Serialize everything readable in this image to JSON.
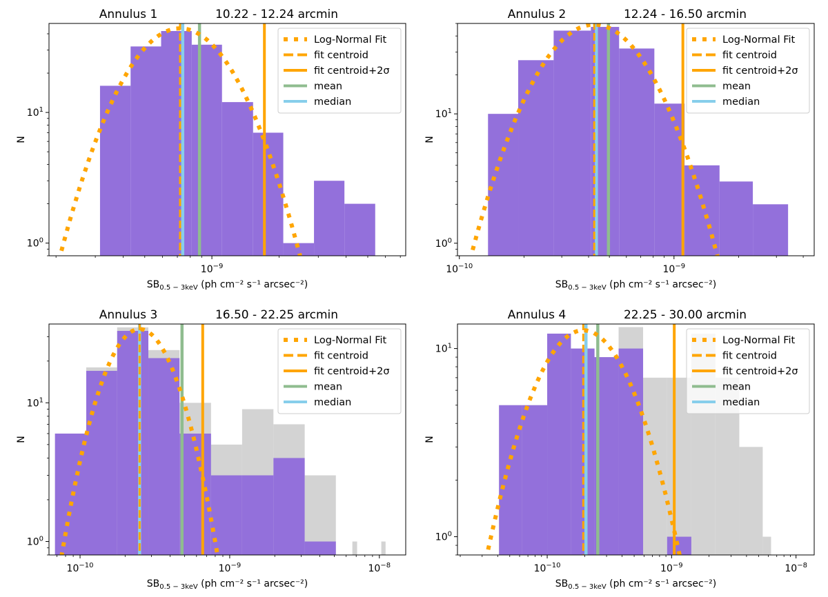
{
  "chart_data": [
    {
      "type": "bar",
      "title_left": "Annulus 1",
      "title_right": "10.22 - 12.24 arcmin",
      "xlabel_main": "SB",
      "xlabel_sub": "0.5 − 3keV",
      "xlabel_rest": " (ph cm⁻² s⁻¹ arcsec⁻²)",
      "ylabel": "N",
      "xscale": "log",
      "yscale": "log",
      "xlim": [
        1.86e-10,
        7.4e-09
      ],
      "ylim": [
        0.8,
        48
      ],
      "xticks": [
        {
          "value": 1e-09,
          "label": "10",
          "exp": "−9"
        }
      ],
      "yticks": [
        {
          "value": 1,
          "label": "10",
          "exp": "0"
        },
        {
          "value": 10,
          "label": "10",
          "exp": "1"
        }
      ],
      "hist_full": null,
      "hist": {
        "edges": [
          3.15e-10,
          4.32e-10,
          5.92e-10,
          8.12e-10,
          1.11e-09,
          1.53e-09,
          2.09e-09,
          2.87e-09,
          3.93e-09,
          5.4e-09
        ],
        "counts": [
          16,
          32,
          42,
          33,
          12,
          7,
          1,
          3,
          2
        ]
      },
      "fit": {
        "centroid": 7.2e-10,
        "sigma_dex": 0.19,
        "peak": 44
      },
      "lines": {
        "fit_centroid": 7.2e-10,
        "fit_centroid_2sigma": 1.72e-09,
        "mean": 8.8e-10,
        "median": 7.4e-10
      },
      "legend": [
        "Log-Normal Fit",
        "fit centroid",
        "fit centroid+2σ",
        "mean",
        "median"
      ],
      "legend_position": "top-right"
    },
    {
      "type": "bar",
      "title_left": "Annulus 2",
      "title_right": "12.24 - 16.50 arcmin",
      "xlabel_main": "SB",
      "xlabel_sub": "0.5 − 3keV",
      "xlabel_rest": " (ph cm⁻² s⁻¹ arcsec⁻²)",
      "ylabel": "N",
      "xscale": "log",
      "yscale": "log",
      "xlim": [
        9.8e-11,
        4.5e-09
      ],
      "ylim": [
        0.8,
        50
      ],
      "xticks": [
        {
          "value": 1e-10,
          "label": "10",
          "exp": "−10"
        },
        {
          "value": 1e-09,
          "label": "10",
          "exp": "−9"
        }
      ],
      "yticks": [
        {
          "value": 1,
          "label": "10",
          "exp": "0"
        },
        {
          "value": 10,
          "label": "10",
          "exp": "1"
        }
      ],
      "hist_full": null,
      "hist": {
        "edges": [
          1.36e-10,
          1.88e-10,
          2.75e-10,
          4.1e-10,
          5.55e-10,
          8.1e-10,
          1.12e-09,
          1.63e-09,
          2.33e-09,
          3.4e-09
        ],
        "counts": [
          10,
          26,
          44,
          47,
          32,
          12,
          4,
          3,
          2
        ]
      },
      "fit": {
        "centroid": 4.25e-10,
        "sigma_dex": 0.2,
        "peak": 49
      },
      "lines": {
        "fit_centroid": 4.25e-10,
        "fit_centroid_2sigma": 1.1e-09,
        "mean": 4.95e-10,
        "median": 4.35e-10
      },
      "legend": [
        "Log-Normal Fit",
        "fit centroid",
        "fit centroid+2σ",
        "mean",
        "median"
      ],
      "legend_position": "top-right"
    },
    {
      "type": "bar",
      "title_left": "Annulus 3",
      "title_right": "16.50 - 22.25 arcmin",
      "xlabel_main": "SB",
      "xlabel_sub": "0.5 − 3keV",
      "xlabel_rest": " (ph cm⁻² s⁻¹ arcsec⁻²)",
      "ylabel": "N",
      "xscale": "log",
      "yscale": "log",
      "xlim": [
        6.2e-11,
        1.5e-08
      ],
      "ylim": [
        0.8,
        37
      ],
      "xticks": [
        {
          "value": 1e-10,
          "label": "10",
          "exp": "−10"
        },
        {
          "value": 1e-09,
          "label": "10",
          "exp": "−9"
        },
        {
          "value": 1e-08,
          "label": "10",
          "exp": "−8"
        }
      ],
      "yticks": [
        {
          "value": 1,
          "label": "10",
          "exp": "0"
        },
        {
          "value": 10,
          "label": "10",
          "exp": "1"
        }
      ],
      "hist_full": {
        "edges": [
          6.8e-11,
          1.1e-10,
          1.77e-10,
          2.86e-10,
          4.62e-10,
          7.5e-10,
          1.21e-09,
          1.96e-09,
          3.17e-09,
          5.12e-09,
          8.3e-09,
          1.34e-08
        ],
        "counts": [
          6,
          18,
          35,
          24,
          10,
          5,
          9,
          7,
          3,
          0,
          0
        ]
      },
      "hist_extra": [
        {
          "x0": 6.6e-09,
          "x1": 7.1e-09,
          "count": 1
        },
        {
          "x0": 1.03e-08,
          "x1": 1.1e-08,
          "count": 1
        }
      ],
      "hist": {
        "edges": [
          6.8e-11,
          1.1e-10,
          1.77e-10,
          2.86e-10,
          4.62e-10,
          7.5e-10,
          1.21e-09,
          1.96e-09,
          3.17e-09,
          5.12e-09
        ],
        "counts": [
          6,
          17,
          33,
          21,
          6,
          3,
          3,
          4,
          1
        ]
      },
      "fit": {
        "centroid": 2.5e-10,
        "sigma_dex": 0.19,
        "peak": 34
      },
      "lines": {
        "fit_centroid": 2.5e-10,
        "fit_centroid_2sigma": 6.6e-10,
        "mean": 4.8e-10,
        "median": 2.5e-10
      },
      "legend": [
        "Log-Normal Fit",
        "fit centroid",
        "fit centroid+2σ",
        "mean",
        "median"
      ],
      "legend_position": "top-right"
    },
    {
      "type": "bar",
      "title_left": "Annulus 4",
      "title_right": "22.25 - 30.00 arcmin",
      "xlabel_main": "SB",
      "xlabel_sub": "0.5 − 3keV",
      "xlabel_rest": " (ph cm⁻² s⁻¹ arcsec⁻²)",
      "ylabel": "N",
      "xscale": "log",
      "yscale": "log",
      "xlim": [
        1.9e-11,
        1.4e-08
      ],
      "ylim": [
        0.8,
        13.5
      ],
      "xticks": [
        {
          "value": 1e-10,
          "label": "10",
          "exp": "−10"
        },
        {
          "value": 1e-09,
          "label": "10",
          "exp": "−9"
        },
        {
          "value": 1e-08,
          "label": "10",
          "exp": "−8"
        }
      ],
      "yticks": [
        {
          "value": 1,
          "label": "10",
          "exp": "0"
        },
        {
          "value": 10,
          "label": "10",
          "exp": "1"
        }
      ],
      "hist_full": {
        "edges": [
          4.1e-11,
          6.3e-11,
          1e-10,
          1.55e-10,
          2.4e-10,
          3.75e-10,
          5.9e-10,
          9.2e-10,
          1.44e-09,
          2.25e-09,
          3.5e-09,
          5.4e-09,
          6.3e-09
        ],
        "counts": [
          5,
          5,
          12,
          10,
          9,
          13,
          7,
          7,
          12,
          7,
          3,
          1
        ]
      },
      "hist": {
        "edges": [
          4.1e-11,
          6.3e-11,
          1e-10,
          1.55e-10,
          2.4e-10,
          3.75e-10,
          5.9e-10,
          9.2e-10,
          1.44e-09
        ],
        "counts": [
          5,
          5,
          12,
          10,
          9,
          10,
          0,
          1
        ]
      },
      "fit": {
        "centroid": 1.95e-10,
        "sigma_dex": 0.33,
        "peak": 12.5
      },
      "lines": {
        "fit_centroid": 1.95e-10,
        "fit_centroid_2sigma": 1.05e-09,
        "mean": 2.55e-10,
        "median": 2.05e-10
      },
      "legend": [
        "Log-Normal Fit",
        "fit centroid",
        "fit centroid+2σ",
        "mean",
        "median"
      ],
      "legend_position": "top-right"
    }
  ],
  "colors": {
    "hist": "#9370db",
    "hist_full": "#d3d3d3",
    "fit": "#ffa500",
    "mean": "#8fbc8f",
    "median": "#87ceeb"
  }
}
